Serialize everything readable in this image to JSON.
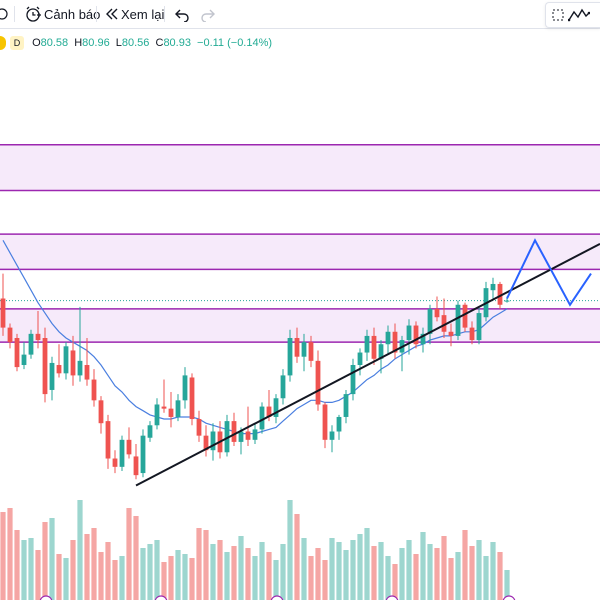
{
  "toolbar": {
    "alert_label": "Cảnh báo",
    "replay_label": "Xem lại"
  },
  "legend": {
    "interval": "D",
    "open_label": "O",
    "open": "80.58",
    "high_label": "H",
    "high": "80.96",
    "low_label": "L",
    "low": "80.56",
    "close_label": "C",
    "close": "80.93",
    "change": "−0.11 (−0.14%)"
  },
  "colors": {
    "up": "#26a69a",
    "down": "#ef5350",
    "zone_line": "#9c27b0",
    "zone_fill": "#f6eafa",
    "ma": "#4a7fe0",
    "trendline": "#131722",
    "projection": "#2962ff"
  },
  "chart_data": {
    "type": "candlestick",
    "price_axis_visible": false,
    "zones": [
      {
        "top": 89.6,
        "bottom": 87.4
      },
      {
        "top": 85.3,
        "bottom": 83.6
      },
      {
        "top": 81.7,
        "bottom": 80.1
      }
    ],
    "candles": [
      [
        82.2,
        83.4,
        80.4,
        80.8
      ],
      [
        80.8,
        81.0,
        79.8,
        80.1
      ],
      [
        80.3,
        80.5,
        78.7,
        78.9
      ],
      [
        79.0,
        80.1,
        78.8,
        79.5
      ],
      [
        79.5,
        80.7,
        79.3,
        80.5
      ],
      [
        80.5,
        81.6,
        79.8,
        80.2
      ],
      [
        80.3,
        80.8,
        77.2,
        77.6
      ],
      [
        77.8,
        79.4,
        77.3,
        79.1
      ],
      [
        79.0,
        80.0,
        78.4,
        78.6
      ],
      [
        78.6,
        80.1,
        78.3,
        79.9
      ],
      [
        79.7,
        80.4,
        78.0,
        78.5
      ],
      [
        78.5,
        81.8,
        78.2,
        79.2
      ],
      [
        79.0,
        80.3,
        78.0,
        78.3
      ],
      [
        78.3,
        78.8,
        77.0,
        77.3
      ],
      [
        77.3,
        77.5,
        75.7,
        76.2
      ],
      [
        76.3,
        76.6,
        74.0,
        74.5
      ],
      [
        74.5,
        74.9,
        73.8,
        74.1
      ],
      [
        74.1,
        75.6,
        73.9,
        75.4
      ],
      [
        75.4,
        76.0,
        74.5,
        74.7
      ],
      [
        74.6,
        75.2,
        73.5,
        73.7
      ],
      [
        73.8,
        75.9,
        73.6,
        75.6
      ],
      [
        75.5,
        76.3,
        75.3,
        76.1
      ],
      [
        76.1,
        77.4,
        75.9,
        77.1
      ],
      [
        77.0,
        78.3,
        76.7,
        76.9
      ],
      [
        76.9,
        77.7,
        76.0,
        76.5
      ],
      [
        76.5,
        77.6,
        76.3,
        77.3
      ],
      [
        77.3,
        78.9,
        76.9,
        78.5
      ],
      [
        78.4,
        78.6,
        76.1,
        76.4
      ],
      [
        76.4,
        76.8,
        75.3,
        75.6
      ],
      [
        75.6,
        76.1,
        74.6,
        74.9
      ],
      [
        74.9,
        76.2,
        74.4,
        75.8
      ],
      [
        75.8,
        76.3,
        74.5,
        74.8
      ],
      [
        74.8,
        76.6,
        74.6,
        76.3
      ],
      [
        76.3,
        76.7,
        75.1,
        75.3
      ],
      [
        75.3,
        76.0,
        74.7,
        75.8
      ],
      [
        75.8,
        77.0,
        75.1,
        75.4
      ],
      [
        75.4,
        76.2,
        75.2,
        75.9
      ],
      [
        75.9,
        77.2,
        75.7,
        77.0
      ],
      [
        77.0,
        77.8,
        76.3,
        76.5
      ],
      [
        76.5,
        77.6,
        76.2,
        77.4
      ],
      [
        77.4,
        78.8,
        77.1,
        78.5
      ],
      [
        78.5,
        80.7,
        78.2,
        80.3
      ],
      [
        80.3,
        80.8,
        79.1,
        79.4
      ],
      [
        79.4,
        80.5,
        78.7,
        80.1
      ],
      [
        80.1,
        80.4,
        78.9,
        79.2
      ],
      [
        79.2,
        79.7,
        76.8,
        77.1
      ],
      [
        77.1,
        77.2,
        75.0,
        75.4
      ],
      [
        75.4,
        76.1,
        74.8,
        75.8
      ],
      [
        75.8,
        76.6,
        75.4,
        76.5
      ],
      [
        76.5,
        77.8,
        76.2,
        77.6
      ],
      [
        77.6,
        79.3,
        77.3,
        79.0
      ],
      [
        79.0,
        79.8,
        78.5,
        79.6
      ],
      [
        79.6,
        80.7,
        79.2,
        80.4
      ],
      [
        80.4,
        80.8,
        79.0,
        79.3
      ],
      [
        79.3,
        80.2,
        78.6,
        80.0
      ],
      [
        80.0,
        80.9,
        79.5,
        80.6
      ],
      [
        80.6,
        81.0,
        79.3,
        79.6
      ],
      [
        79.6,
        80.4,
        78.7,
        80.2
      ],
      [
        80.2,
        81.2,
        79.5,
        80.9
      ],
      [
        80.9,
        81.1,
        79.8,
        80.0
      ],
      [
        80.0,
        80.8,
        79.6,
        80.5
      ],
      [
        80.5,
        81.9,
        80.0,
        81.7
      ],
      [
        81.7,
        82.3,
        81.1,
        81.3
      ],
      [
        81.4,
        82.2,
        80.3,
        80.6
      ],
      [
        80.6,
        81.0,
        79.9,
        80.4
      ],
      [
        80.4,
        82.1,
        80.2,
        81.9
      ],
      [
        81.9,
        82.0,
        80.6,
        80.8
      ],
      [
        80.8,
        81.1,
        80.0,
        80.2
      ],
      [
        80.2,
        81.8,
        80.0,
        81.5
      ],
      [
        81.3,
        83.0,
        81.1,
        82.7
      ],
      [
        82.6,
        83.2,
        82.2,
        82.9
      ],
      [
        82.9,
        83.0,
        81.7,
        81.9
      ],
      [
        82.1,
        82.3,
        82.0,
        82.1
      ]
    ],
    "moving_average": [
      85.0,
      84.4,
      83.8,
      83.2,
      82.6,
      82.0,
      81.5,
      81.0,
      80.6,
      80.3,
      80.1,
      79.9,
      79.7,
      79.4,
      79.0,
      78.5,
      78.0,
      77.7,
      77.3,
      77.0,
      76.8,
      76.6,
      76.5,
      76.4,
      76.4,
      76.5,
      76.5,
      76.5,
      76.4,
      76.2,
      76.1,
      76.0,
      75.9,
      75.8,
      75.7,
      75.7,
      75.7,
      75.8,
      75.9,
      76.0,
      76.3,
      76.6,
      76.9,
      77.1,
      77.3,
      77.3,
      77.2,
      77.2,
      77.3,
      77.5,
      77.7,
      78.0,
      78.3,
      78.5,
      78.8,
      79.0,
      79.3,
      79.5,
      79.7,
      79.9,
      80.0,
      80.2,
      80.3,
      80.4,
      80.4,
      80.5,
      80.6,
      80.6,
      80.7,
      81.0,
      81.3,
      81.5,
      81.7
    ],
    "volume": [
      88,
      92,
      70,
      60,
      62,
      50,
      78,
      82,
      46,
      42,
      60,
      100,
      66,
      72,
      48,
      58,
      40,
      44,
      92,
      84,
      52,
      56,
      60,
      38,
      44,
      50,
      46,
      42,
      72,
      70,
      56,
      60,
      48,
      54,
      64,
      52,
      44,
      58,
      48,
      40,
      56,
      100,
      86,
      62,
      44,
      52,
      40,
      62,
      58,
      50,
      60,
      66,
      72,
      54,
      58,
      44,
      36,
      52,
      60,
      46,
      68,
      56,
      52,
      64,
      42,
      48,
      70,
      54,
      60,
      44,
      58,
      48,
      30
    ],
    "trendline": {
      "from": {
        "bar": 19,
        "price": 73.2
      },
      "to": {
        "bar": 72,
        "price": 82.5
      }
    },
    "projection": [
      {
        "bar": 72,
        "price": 82.2
      },
      {
        "bar": 76,
        "price": 85.0
      },
      {
        "bar": 81,
        "price": 81.9
      },
      {
        "bar": 84,
        "price": 83.4
      }
    ]
  }
}
